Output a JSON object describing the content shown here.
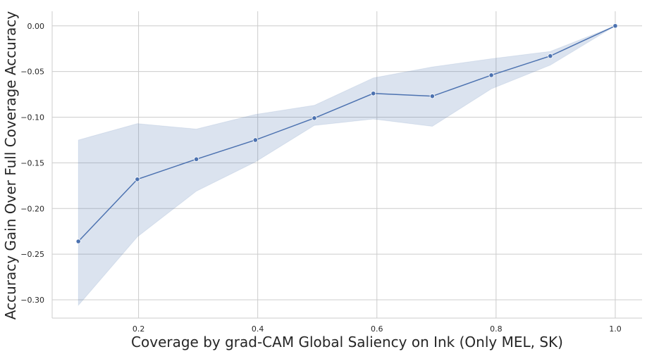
{
  "chart_data": {
    "type": "line",
    "title": "",
    "xlabel": "Coverage by grad-CAM Global Saliency on Ink (Only MEL, SK)",
    "ylabel": "Accuracy Gain Over Full Coverage Accuracy",
    "xlim": [
      0.055,
      1.045
    ],
    "ylim": [
      -0.32,
      0.016
    ],
    "xticks": [
      0.2,
      0.4,
      0.6,
      0.8,
      1.0
    ],
    "xtick_labels": [
      "0.2",
      "0.4",
      "0.6",
      "0.8",
      "1.0"
    ],
    "yticks": [
      0.0,
      -0.05,
      -0.1,
      -0.15,
      -0.2,
      -0.25,
      -0.3
    ],
    "ytick_labels": [
      "0.00",
      "−0.05",
      "−0.10",
      "−0.15",
      "−0.20",
      "−0.25",
      "−0.30"
    ],
    "grid": true,
    "legend": false,
    "line_color": "#4c72b0",
    "band_color": "#4c72b0",
    "series": [
      {
        "x": [
          0.099,
          0.198,
          0.297,
          0.396,
          0.495,
          0.594,
          0.693,
          0.792,
          0.891,
          1.0
        ],
        "y": [
          -0.236,
          -0.168,
          -0.146,
          -0.125,
          -0.101,
          -0.074,
          -0.077,
          -0.054,
          -0.033,
          0.0
        ],
        "ci_lower": [
          -0.306,
          -0.231,
          -0.181,
          -0.149,
          -0.109,
          -0.102,
          -0.11,
          -0.069,
          -0.043,
          0.0
        ],
        "ci_upper": [
          -0.125,
          -0.107,
          -0.113,
          -0.097,
          -0.087,
          -0.057,
          -0.045,
          -0.036,
          -0.028,
          0.0
        ]
      }
    ]
  }
}
